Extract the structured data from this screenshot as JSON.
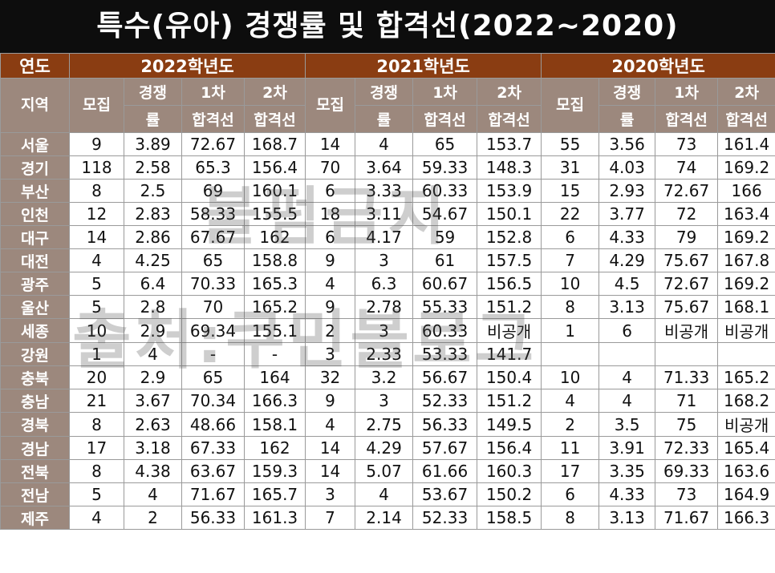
{
  "title": "특수(유아) 경쟁률 및 합격선(2022~2020)",
  "header": {
    "year_col": "연도",
    "region_col": "지역",
    "years": [
      "2022학년도",
      "2021학년도",
      "2020학년도"
    ],
    "sub": {
      "recruit": "모집",
      "comp_top": "경쟁",
      "comp_bottom": "률",
      "first_top": "1차",
      "first_bottom": "합격선",
      "second_top": "2차",
      "second_bottom": "합격선"
    }
  },
  "rows": [
    {
      "region": "서울",
      "y2022": [
        "9",
        "3.89",
        "72.67",
        "168.7"
      ],
      "y2021": [
        "14",
        "4",
        "65",
        "153.7"
      ],
      "y2020": [
        "55",
        "3.56",
        "73",
        "161.4"
      ]
    },
    {
      "region": "경기",
      "y2022": [
        "118",
        "2.58",
        "65.3",
        "156.4"
      ],
      "y2021": [
        "70",
        "3.64",
        "59.33",
        "148.3"
      ],
      "y2020": [
        "31",
        "4.03",
        "74",
        "169.2"
      ]
    },
    {
      "region": "부산",
      "y2022": [
        "8",
        "2.5",
        "69",
        "160.1"
      ],
      "y2021": [
        "6",
        "3.33",
        "60.33",
        "153.9"
      ],
      "y2020": [
        "15",
        "2.93",
        "72.67",
        "166"
      ]
    },
    {
      "region": "인천",
      "y2022": [
        "12",
        "2.83",
        "58.33",
        "155.5"
      ],
      "y2021": [
        "18",
        "3.11",
        "54.67",
        "150.1"
      ],
      "y2020": [
        "22",
        "3.77",
        "72",
        "163.4"
      ]
    },
    {
      "region": "대구",
      "y2022": [
        "14",
        "2.86",
        "67.67",
        "162"
      ],
      "y2021": [
        "6",
        "4.17",
        "59",
        "152.8"
      ],
      "y2020": [
        "6",
        "4.33",
        "79",
        "169.2"
      ]
    },
    {
      "region": "대전",
      "y2022": [
        "4",
        "4.25",
        "65",
        "158.8"
      ],
      "y2021": [
        "9",
        "3",
        "61",
        "157.5"
      ],
      "y2020": [
        "7",
        "4.29",
        "75.67",
        "167.8"
      ]
    },
    {
      "region": "광주",
      "y2022": [
        "5",
        "6.4",
        "70.33",
        "165.3"
      ],
      "y2021": [
        "4",
        "6.3",
        "60.67",
        "156.5"
      ],
      "y2020": [
        "10",
        "4.5",
        "72.67",
        "169.2"
      ]
    },
    {
      "region": "울산",
      "y2022": [
        "5",
        "2.8",
        "70",
        "165.2"
      ],
      "y2021": [
        "9",
        "2.78",
        "55.33",
        "151.2"
      ],
      "y2020": [
        "8",
        "3.13",
        "75.67",
        "168.1"
      ]
    },
    {
      "region": "세종",
      "y2022": [
        "10",
        "2.9",
        "69.34",
        "155.1"
      ],
      "y2021": [
        "2",
        "3",
        "60.33",
        "비공개"
      ],
      "y2020": [
        "1",
        "6",
        "비공개",
        "비공개"
      ]
    },
    {
      "region": "강원",
      "y2022": [
        "1",
        "4",
        "-",
        "-"
      ],
      "y2021": [
        "3",
        "2.33",
        "53.33",
        "141.7"
      ],
      "y2020": [
        "",
        "",
        "",
        ""
      ]
    },
    {
      "region": "충북",
      "y2022": [
        "20",
        "2.9",
        "65",
        "164"
      ],
      "y2021": [
        "32",
        "3.2",
        "56.67",
        "150.4"
      ],
      "y2020": [
        "10",
        "4",
        "71.33",
        "165.2"
      ]
    },
    {
      "region": "충남",
      "y2022": [
        "21",
        "3.67",
        "70.34",
        "166.3"
      ],
      "y2021": [
        "9",
        "3",
        "52.33",
        "151.2"
      ],
      "y2020": [
        "4",
        "4",
        "71",
        "168.2"
      ]
    },
    {
      "region": "경북",
      "y2022": [
        "8",
        "2.63",
        "48.66",
        "158.1"
      ],
      "y2021": [
        "4",
        "2.75",
        "56.33",
        "149.5"
      ],
      "y2020": [
        "2",
        "3.5",
        "75",
        "비공개"
      ]
    },
    {
      "region": "경남",
      "y2022": [
        "17",
        "3.18",
        "67.33",
        "162"
      ],
      "y2021": [
        "14",
        "4.29",
        "57.67",
        "156.4"
      ],
      "y2020": [
        "11",
        "3.91",
        "72.33",
        "165.4"
      ]
    },
    {
      "region": "전북",
      "y2022": [
        "8",
        "4.38",
        "63.67",
        "159.3"
      ],
      "y2021": [
        "14",
        "5.07",
        "61.66",
        "160.3"
      ],
      "y2020": [
        "17",
        "3.35",
        "69.33",
        "163.6"
      ]
    },
    {
      "region": "전남",
      "y2022": [
        "5",
        "4",
        "71.67",
        "165.7"
      ],
      "y2021": [
        "3",
        "4",
        "53.67",
        "150.2"
      ],
      "y2020": [
        "6",
        "4.33",
        "73",
        "164.9"
      ]
    },
    {
      "region": "제주",
      "y2022": [
        "4",
        "2",
        "56.33",
        "161.3"
      ],
      "y2021": [
        "7",
        "2.14",
        "52.33",
        "158.5"
      ],
      "y2020": [
        "8",
        "3.13",
        "71.67",
        "166.3"
      ]
    }
  ],
  "watermark": {
    "line1": "불펌금지",
    "line2": "출처:쿠민블로그"
  }
}
